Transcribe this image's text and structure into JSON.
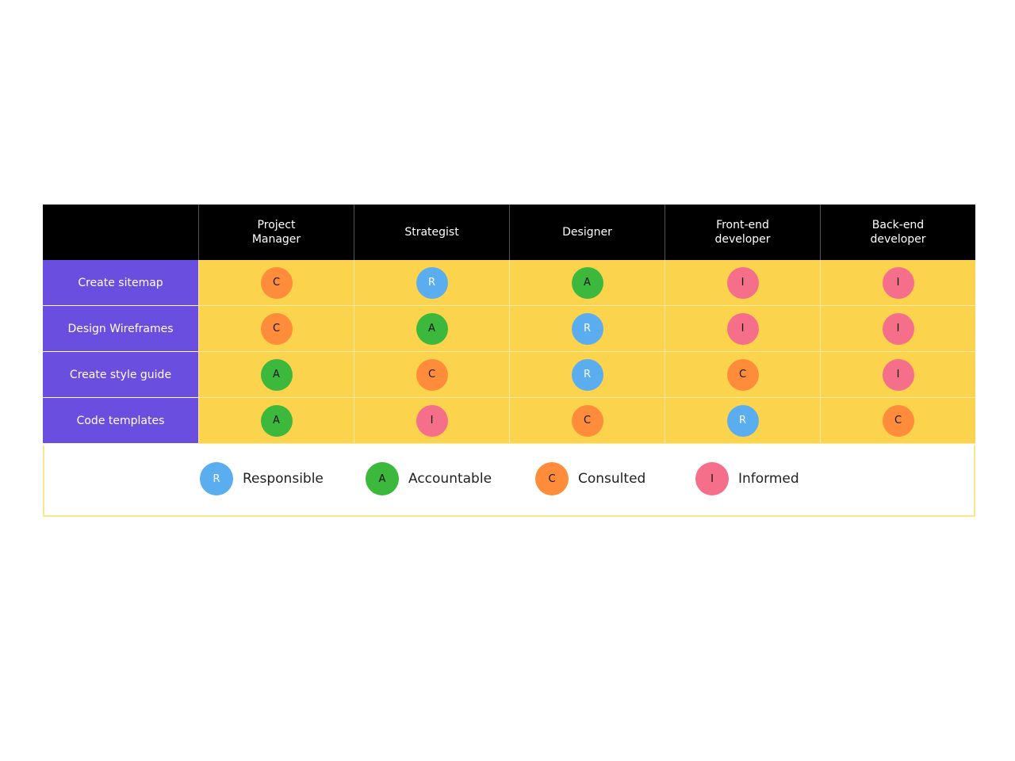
{
  "roles": [
    "Project\nManager",
    "Strategist",
    "Designer",
    "Front-end\ndeveloper",
    "Back-end\ndeveloper"
  ],
  "tasks": [
    {
      "name": "Create sitemap",
      "assignments": [
        "C",
        "R",
        "A",
        "I",
        "I"
      ]
    },
    {
      "name": "Design Wireframes",
      "assignments": [
        "C",
        "A",
        "R",
        "I",
        "I"
      ]
    },
    {
      "name": "Create style guide",
      "assignments": [
        "A",
        "C",
        "R",
        "C",
        "I"
      ]
    },
    {
      "name": "Code templates",
      "assignments": [
        "A",
        "I",
        "C",
        "R",
        "C"
      ]
    }
  ],
  "legend": [
    {
      "code": "R",
      "label": "Responsible"
    },
    {
      "code": "A",
      "label": "Accountable"
    },
    {
      "code": "C",
      "label": "Consulted"
    },
    {
      "code": "I",
      "label": "Informed"
    }
  ],
  "colors": {
    "header_bg": "#000000",
    "task_bg": "#6a4ee0",
    "cell_bg": "#fcd34d",
    "R": "#5aaef0",
    "A": "#3cb83c",
    "C": "#ff8c3a",
    "I": "#f56e8a"
  }
}
